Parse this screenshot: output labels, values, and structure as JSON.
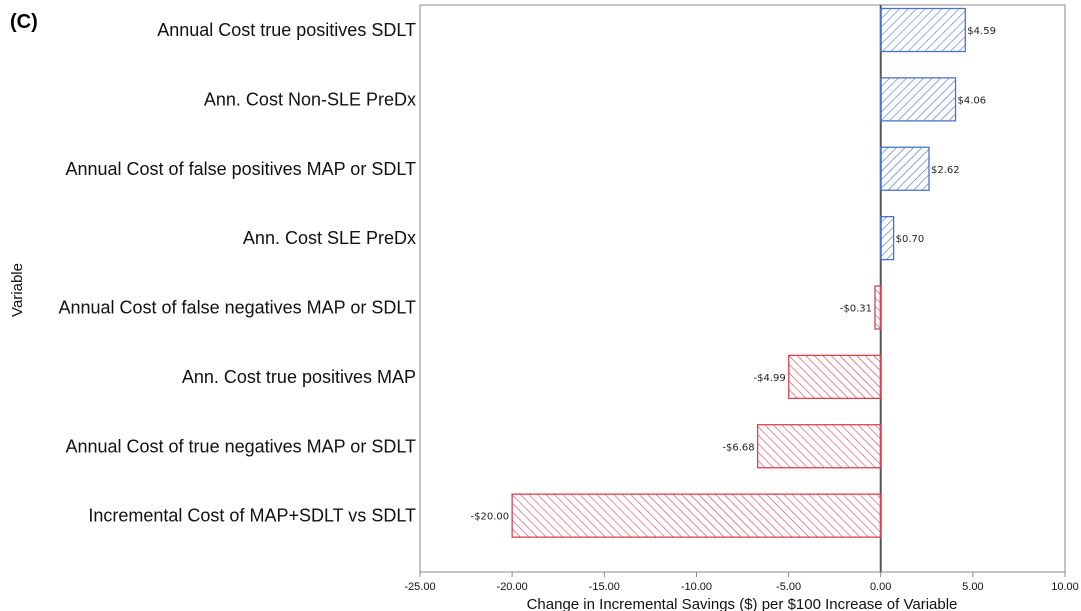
{
  "panel_label": "(C)",
  "colors": {
    "positive": "#4a72c9",
    "negative": "#d9414f",
    "axis": "#777777",
    "zero_line": "#555555"
  },
  "chart_data": {
    "type": "bar",
    "orientation": "horizontal",
    "hatched": true,
    "xlabel": "Change in Incremental Savings ($) per $100 Increase of Variable",
    "ylabel": "Variable",
    "xlim": [
      -25,
      10
    ],
    "xticks": [
      -25,
      -20,
      -15,
      -10,
      -5,
      0,
      5,
      10
    ],
    "xtick_labels": [
      "-25.00",
      "-20.00",
      "-15.00",
      "-10.00",
      "-5.00",
      "0.00",
      "5.00",
      "10.00"
    ],
    "categories": [
      "Annual Cost true positives SDLT",
      "Ann. Cost Non-SLE PreDx",
      "Annual Cost of false positives MAP or SDLT",
      "Ann. Cost SLE PreDx",
      "Annual Cost of false negatives MAP or SDLT",
      "Ann. Cost true positives MAP",
      "Annual Cost of true negatives MAP or SDLT",
      "Incremental Cost of MAP+SDLT vs SDLT"
    ],
    "values": [
      4.59,
      4.06,
      2.62,
      0.7,
      -0.31,
      -4.99,
      -6.68,
      -20.0
    ],
    "value_labels": [
      "$4.59",
      "$4.06",
      "$2.62",
      "$0.70",
      "-$0.31",
      "-$4.99",
      "-$6.68",
      "-$20.00"
    ]
  }
}
